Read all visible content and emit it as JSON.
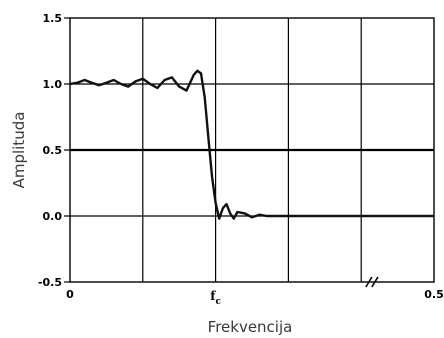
{
  "chart_data": {
    "type": "line",
    "title": "",
    "xlabel": "Frekvencija",
    "ylabel": "Amplituda",
    "xlim": [
      0,
      0.5
    ],
    "ylim": [
      -0.5,
      1.5
    ],
    "yticks": [
      -0.5,
      0.0,
      0.5,
      1.0,
      1.5
    ],
    "ytick_labels": [
      "-0.5",
      "0.0",
      "0.5",
      "1.0",
      "1.5"
    ],
    "xticks": [
      0,
      0.5
    ],
    "xtick_labels": [
      "0",
      "0.5"
    ],
    "cutoff_label": "f",
    "cutoff_subscript": "c",
    "cutoff_x": 0.2,
    "grid": true,
    "axis_break_marker": "//",
    "series": [
      {
        "x": [
          0,
          0.01,
          0.02,
          0.03,
          0.04,
          0.05,
          0.06,
          0.07,
          0.08,
          0.09,
          0.1,
          0.11,
          0.12,
          0.13,
          0.14,
          0.15,
          0.16,
          0.17,
          0.175,
          0.18,
          0.185,
          0.19,
          0.195,
          0.2,
          0.205,
          0.21,
          0.215,
          0.22,
          0.225,
          0.23,
          0.24,
          0.25,
          0.26,
          0.27,
          0.28,
          0.3,
          0.35,
          0.4,
          0.45,
          0.5
        ],
        "y": [
          1.0,
          1.01,
          1.03,
          1.01,
          0.99,
          1.01,
          1.03,
          1.0,
          0.98,
          1.02,
          1.04,
          1.0,
          0.97,
          1.03,
          1.05,
          0.98,
          0.95,
          1.07,
          1.1,
          1.08,
          0.9,
          0.6,
          0.3,
          0.1,
          -0.02,
          0.06,
          0.09,
          0.02,
          -0.02,
          0.03,
          0.02,
          -0.01,
          0.01,
          0.0,
          0.0,
          0.0,
          0.0,
          0.0,
          0.0,
          0.0
        ]
      }
    ]
  }
}
